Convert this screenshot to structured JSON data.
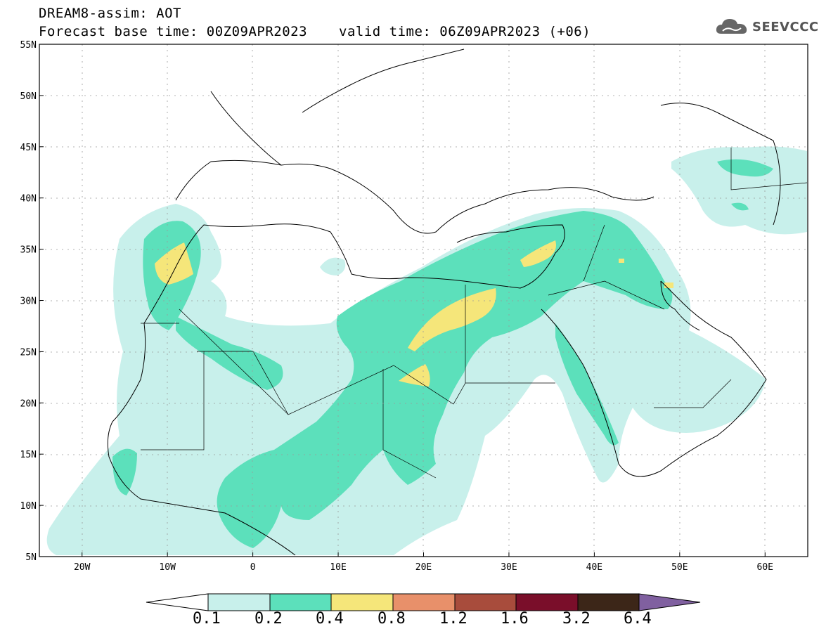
{
  "header": {
    "model_line": "DREAM8-assim: AOT",
    "base_time": "Forecast base time: 00Z09APR2023",
    "valid_time": "valid time: 06Z09APR2023 (+06)",
    "logo_text": "SEEVCCC"
  },
  "map": {
    "lat_range": [
      5,
      55
    ],
    "lon_range": [
      -25,
      65
    ],
    "lat_labels": [
      "55N",
      "50N",
      "45N",
      "40N",
      "35N",
      "30N",
      "25N",
      "20N",
      "15N",
      "10N",
      "5N"
    ],
    "lon_labels": [
      "20W",
      "10W",
      "0",
      "10E",
      "20E",
      "30E",
      "40E",
      "50E",
      "60E"
    ],
    "gridlines": "dotted"
  },
  "colorbar": {
    "levels": [
      "0.1",
      "0.2",
      "0.4",
      "0.8",
      "1.2",
      "1.6",
      "3.2",
      "6.4"
    ],
    "colors": [
      "#ffffff",
      "#c8f0eb",
      "#5ce0bb",
      "#f5e67a",
      "#e8906a",
      "#a84c3c",
      "#7a0e2a",
      "#3c2618",
      "#8060a0"
    ]
  }
}
